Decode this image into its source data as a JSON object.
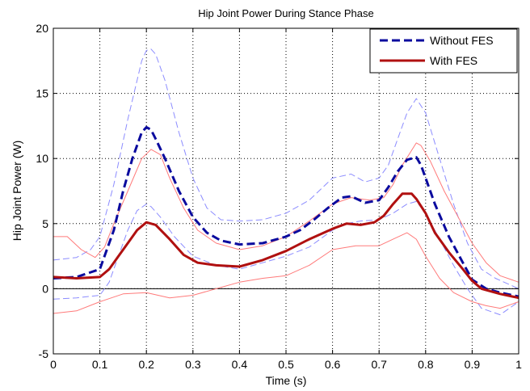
{
  "chart_data": {
    "type": "line",
    "title": "Hip Joint Power During Stance Phase",
    "xlabel": "Time (s)",
    "ylabel": "Hip Joint Power (W)",
    "xlim": [
      0,
      1
    ],
    "ylim": [
      -5,
      20
    ],
    "xticks": [
      0,
      0.1,
      0.2,
      0.3,
      0.4,
      0.5,
      0.6,
      0.7,
      0.8,
      0.9,
      1
    ],
    "xtick_labels": [
      "0",
      "0.1",
      "0.2",
      "0.3",
      "0.4",
      "0.5",
      "0.6",
      "0.7",
      "0.8",
      "0.9",
      "1"
    ],
    "yticks": [
      -5,
      0,
      5,
      10,
      15,
      20
    ],
    "ytick_labels": [
      "-5",
      "0",
      "5",
      "10",
      "15",
      "20"
    ],
    "grid": true,
    "zero_line": true,
    "legend": {
      "position": "top-right",
      "entries": [
        {
          "label": "Without FES",
          "color": "#0a0a9e",
          "style": "dashed"
        },
        {
          "label": "With FES",
          "color": "#b01010",
          "style": "solid"
        }
      ]
    },
    "series": [
      {
        "name": "Without FES",
        "color": "#0a0a9e",
        "style": "dashed",
        "x": [
          0,
          0.05,
          0.1,
          0.13,
          0.15,
          0.17,
          0.19,
          0.2,
          0.21,
          0.22,
          0.24,
          0.27,
          0.3,
          0.33,
          0.36,
          0.4,
          0.45,
          0.5,
          0.53,
          0.56,
          0.59,
          0.62,
          0.64,
          0.67,
          0.7,
          0.72,
          0.74,
          0.76,
          0.78,
          0.79,
          0.8,
          0.82,
          0.85,
          0.88,
          0.9,
          0.93,
          0.96,
          1
        ],
        "y": [
          0.8,
          0.9,
          1.5,
          4.5,
          7.5,
          10.0,
          12.0,
          12.4,
          12.2,
          11.5,
          10.0,
          7.5,
          5.5,
          4.3,
          3.7,
          3.4,
          3.5,
          4.0,
          4.5,
          5.3,
          6.2,
          7.0,
          7.1,
          6.6,
          6.8,
          7.8,
          9.0,
          9.9,
          10.1,
          9.5,
          8.5,
          6.5,
          4.0,
          2.0,
          0.7,
          0.0,
          -0.3,
          -0.6
        ]
      },
      {
        "name": "With FES",
        "color": "#b01010",
        "style": "solid",
        "x": [
          0,
          0.05,
          0.1,
          0.12,
          0.14,
          0.16,
          0.18,
          0.2,
          0.21,
          0.22,
          0.25,
          0.28,
          0.31,
          0.35,
          0.4,
          0.45,
          0.5,
          0.55,
          0.6,
          0.63,
          0.66,
          0.69,
          0.71,
          0.73,
          0.75,
          0.77,
          0.78,
          0.8,
          0.82,
          0.85,
          0.88,
          0.9,
          0.92,
          0.96,
          1
        ],
        "y": [
          0.9,
          0.8,
          0.9,
          1.5,
          2.5,
          3.5,
          4.5,
          5.1,
          5.0,
          4.9,
          3.8,
          2.6,
          2.0,
          1.8,
          1.7,
          2.2,
          2.9,
          3.8,
          4.6,
          5.0,
          4.9,
          5.1,
          5.6,
          6.5,
          7.3,
          7.3,
          6.9,
          5.8,
          4.3,
          2.8,
          1.5,
          0.6,
          0.0,
          -0.4,
          -0.7
        ]
      },
      {
        "name": "",
        "color": "#8c8cff",
        "style": "dashed",
        "x": [
          0,
          0.05,
          0.08,
          0.1,
          0.13,
          0.16,
          0.19,
          0.2,
          0.21,
          0.22,
          0.24,
          0.27,
          0.3,
          0.33,
          0.36,
          0.4,
          0.45,
          0.5,
          0.55,
          0.6,
          0.64,
          0.67,
          0.7,
          0.72,
          0.74,
          0.76,
          0.78,
          0.8,
          0.83,
          0.86,
          0.89,
          0.92,
          0.95,
          1
        ],
        "y": [
          2.2,
          2.4,
          3.0,
          4.0,
          8.0,
          13.0,
          17.5,
          18.3,
          18.4,
          18.0,
          16.0,
          12.0,
          8.5,
          6.2,
          5.3,
          5.2,
          5.3,
          5.8,
          6.8,
          8.5,
          8.8,
          8.2,
          8.5,
          9.5,
          11.5,
          13.5,
          14.6,
          13.5,
          10.0,
          6.5,
          3.5,
          1.5,
          0.8,
          0.0
        ]
      },
      {
        "name": "",
        "color": "#8c8cff",
        "style": "dashed",
        "x": [
          0,
          0.05,
          0.1,
          0.12,
          0.14,
          0.16,
          0.18,
          0.2,
          0.21,
          0.23,
          0.26,
          0.3,
          0.35,
          0.4,
          0.45,
          0.5,
          0.55,
          0.6,
          0.63,
          0.66,
          0.7,
          0.73,
          0.76,
          0.78,
          0.8,
          0.83,
          0.86,
          0.89,
          0.92,
          0.96,
          1
        ],
        "y": [
          -0.8,
          -0.7,
          -0.5,
          0.5,
          2.5,
          4.5,
          6.0,
          6.5,
          6.3,
          5.5,
          4.0,
          2.5,
          1.8,
          1.5,
          2.0,
          2.5,
          3.2,
          4.5,
          5.0,
          5.2,
          5.3,
          5.8,
          6.5,
          6.7,
          5.8,
          3.8,
          1.8,
          0.0,
          -1.5,
          -2.0,
          -1.0
        ]
      },
      {
        "name": "",
        "color": "#ff7a7a",
        "style": "solid",
        "x": [
          0,
          0.03,
          0.06,
          0.09,
          0.11,
          0.13,
          0.16,
          0.19,
          0.21,
          0.23,
          0.25,
          0.28,
          0.31,
          0.35,
          0.4,
          0.45,
          0.5,
          0.55,
          0.6,
          0.64,
          0.68,
          0.71,
          0.73,
          0.75,
          0.78,
          0.79,
          0.81,
          0.84,
          0.87,
          0.9,
          0.93,
          0.96,
          1
        ],
        "y": [
          4.0,
          4.0,
          3.0,
          2.4,
          3.2,
          5.0,
          7.5,
          10.0,
          10.7,
          10.3,
          8.5,
          6.2,
          4.5,
          3.5,
          3.0,
          3.3,
          4.0,
          5.2,
          6.5,
          7.0,
          6.8,
          7.0,
          8.0,
          9.5,
          11.2,
          11.0,
          9.8,
          7.5,
          5.5,
          3.5,
          2.0,
          1.0,
          0.5
        ]
      },
      {
        "name": "",
        "color": "#ff7a7a",
        "style": "solid",
        "x": [
          0,
          0.05,
          0.1,
          0.15,
          0.2,
          0.25,
          0.3,
          0.35,
          0.4,
          0.45,
          0.5,
          0.55,
          0.6,
          0.65,
          0.7,
          0.73,
          0.76,
          0.78,
          0.8,
          0.83,
          0.86,
          0.9,
          0.93,
          0.96,
          1
        ],
        "y": [
          -1.9,
          -1.7,
          -1.0,
          -0.4,
          -0.3,
          -0.7,
          -0.5,
          0.0,
          0.5,
          0.8,
          1.0,
          1.8,
          3.0,
          3.3,
          3.3,
          3.8,
          4.3,
          3.8,
          2.5,
          0.8,
          -0.3,
          -1.0,
          -1.3,
          -1.5,
          -1.0
        ]
      }
    ]
  }
}
